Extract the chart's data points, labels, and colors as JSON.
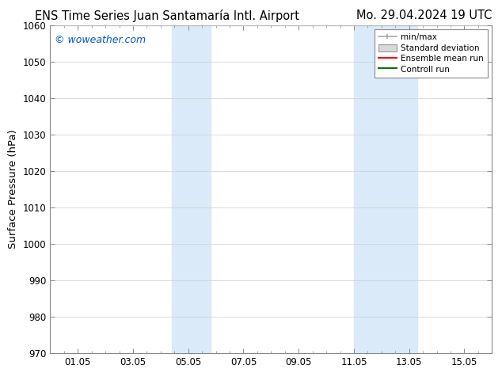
{
  "title_left": "ENS Time Series Juan Santamaría Intl. Airport",
  "title_right": "Mo. 29.04.2024 19 UTC",
  "ylabel": "Surface Pressure (hPa)",
  "ylim": [
    970,
    1060
  ],
  "yticks": [
    970,
    980,
    990,
    1000,
    1010,
    1020,
    1030,
    1040,
    1050,
    1060
  ],
  "xtick_labels": [
    "01.05",
    "03.05",
    "05.05",
    "07.05",
    "09.05",
    "11.05",
    "13.05",
    "15.05"
  ],
  "xtick_positions": [
    1,
    3,
    5,
    7,
    9,
    11,
    13,
    15
  ],
  "xlim": [
    0,
    16
  ],
  "shaded_bands": [
    {
      "x_start": 4.4,
      "x_end": 5.8
    },
    {
      "x_start": 11.0,
      "x_end": 13.3
    }
  ],
  "shaded_color": "#daeaf8",
  "watermark": "© woweather.com",
  "watermark_color": "#0055cc",
  "legend_labels": [
    "min/max",
    "Standard deviation",
    "Ensemble mean run",
    "Controll run"
  ],
  "legend_colors": [
    "#aaaaaa",
    "#cccccc",
    "#ff0000",
    "#007700"
  ],
  "background_color": "#ffffff",
  "plot_bg_color": "#ffffff",
  "grid_color": "#cccccc",
  "title_fontsize": 10.5,
  "tick_fontsize": 8.5,
  "ylabel_fontsize": 9.5,
  "legend_fontsize": 7.5,
  "watermark_fontsize": 9
}
